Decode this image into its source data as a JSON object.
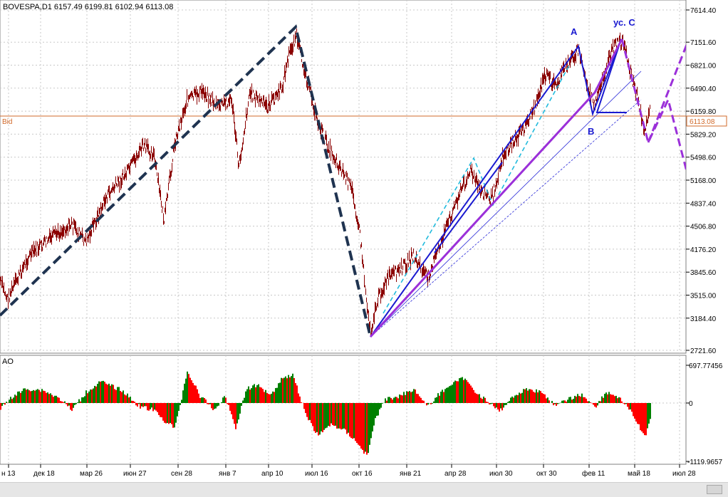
{
  "main_chart": {
    "symbol_info": "BOVESPA,D1  6157.49  6199.81  6102.94  6113.08",
    "bid_label": "Bid",
    "bid_value": "6113.08",
    "bid_price": 6113.08,
    "price_range": [
      2721.6,
      7614.4
    ],
    "price_ticks": [
      "7614.40",
      "7151.60",
      "6821.00",
      "6490.40",
      "6159.80",
      "5829.20",
      "5498.60",
      "5168.00",
      "4837.40",
      "4506.80",
      "4176.20",
      "3845.60",
      "3515.00",
      "3184.40",
      "2721.60"
    ],
    "annotations": {
      "a": "A",
      "b": "B",
      "c": "ус. С"
    }
  },
  "ao_panel": {
    "title": "AO",
    "ticks": [
      "697.77456",
      "0",
      "-1119.9657"
    ]
  },
  "time_axis": {
    "labels": [
      "н 13",
      "дек 18",
      "мар 26",
      "июн 27",
      "сен 28",
      "янв 7",
      "апр 10",
      "июл 16",
      "окт 16",
      "янв 21",
      "апр 28",
      "июл 30",
      "окт 30",
      "фев 11",
      "май 18",
      "июл 28"
    ]
  },
  "colors": {
    "bars": "#8b0000",
    "wave_dashed": "#1f3350",
    "channel": "#1a1ad0",
    "projection": "#9b30d9",
    "cyan": "#22bbdd",
    "bid_line": "#d26a2a",
    "ao_up": "#008000",
    "ao_down": "#ff0000"
  }
}
